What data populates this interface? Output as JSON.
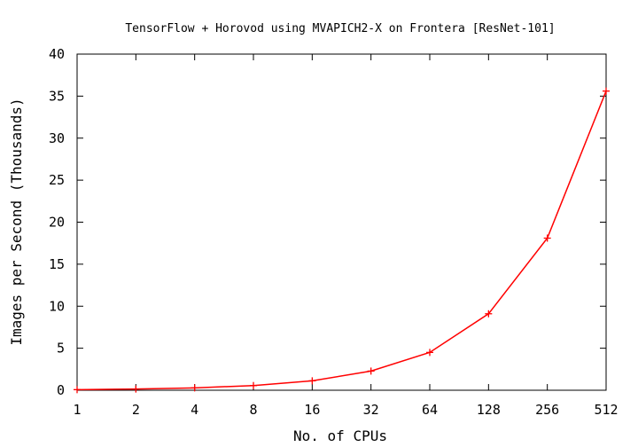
{
  "chart_data": {
    "type": "line",
    "title": "TensorFlow + Horovod using MVAPICH2-X on Frontera [ResNet-101]",
    "xlabel": "No. of CPUs",
    "ylabel": "Images per Second (Thousands)",
    "categories": [
      "1",
      "2",
      "4",
      "8",
      "16",
      "32",
      "64",
      "128",
      "256",
      "512"
    ],
    "series": [
      {
        "values": [
          0.07,
          0.14,
          0.28,
          0.56,
          1.12,
          2.28,
          4.5,
          9.1,
          18.1,
          35.6
        ],
        "color": "#ff0000"
      }
    ],
    "ylim": [
      0,
      40
    ],
    "yticks": [
      "0",
      "5",
      "10",
      "15",
      "20",
      "25",
      "30",
      "35",
      "40"
    ],
    "grid": false,
    "legend": "none"
  }
}
